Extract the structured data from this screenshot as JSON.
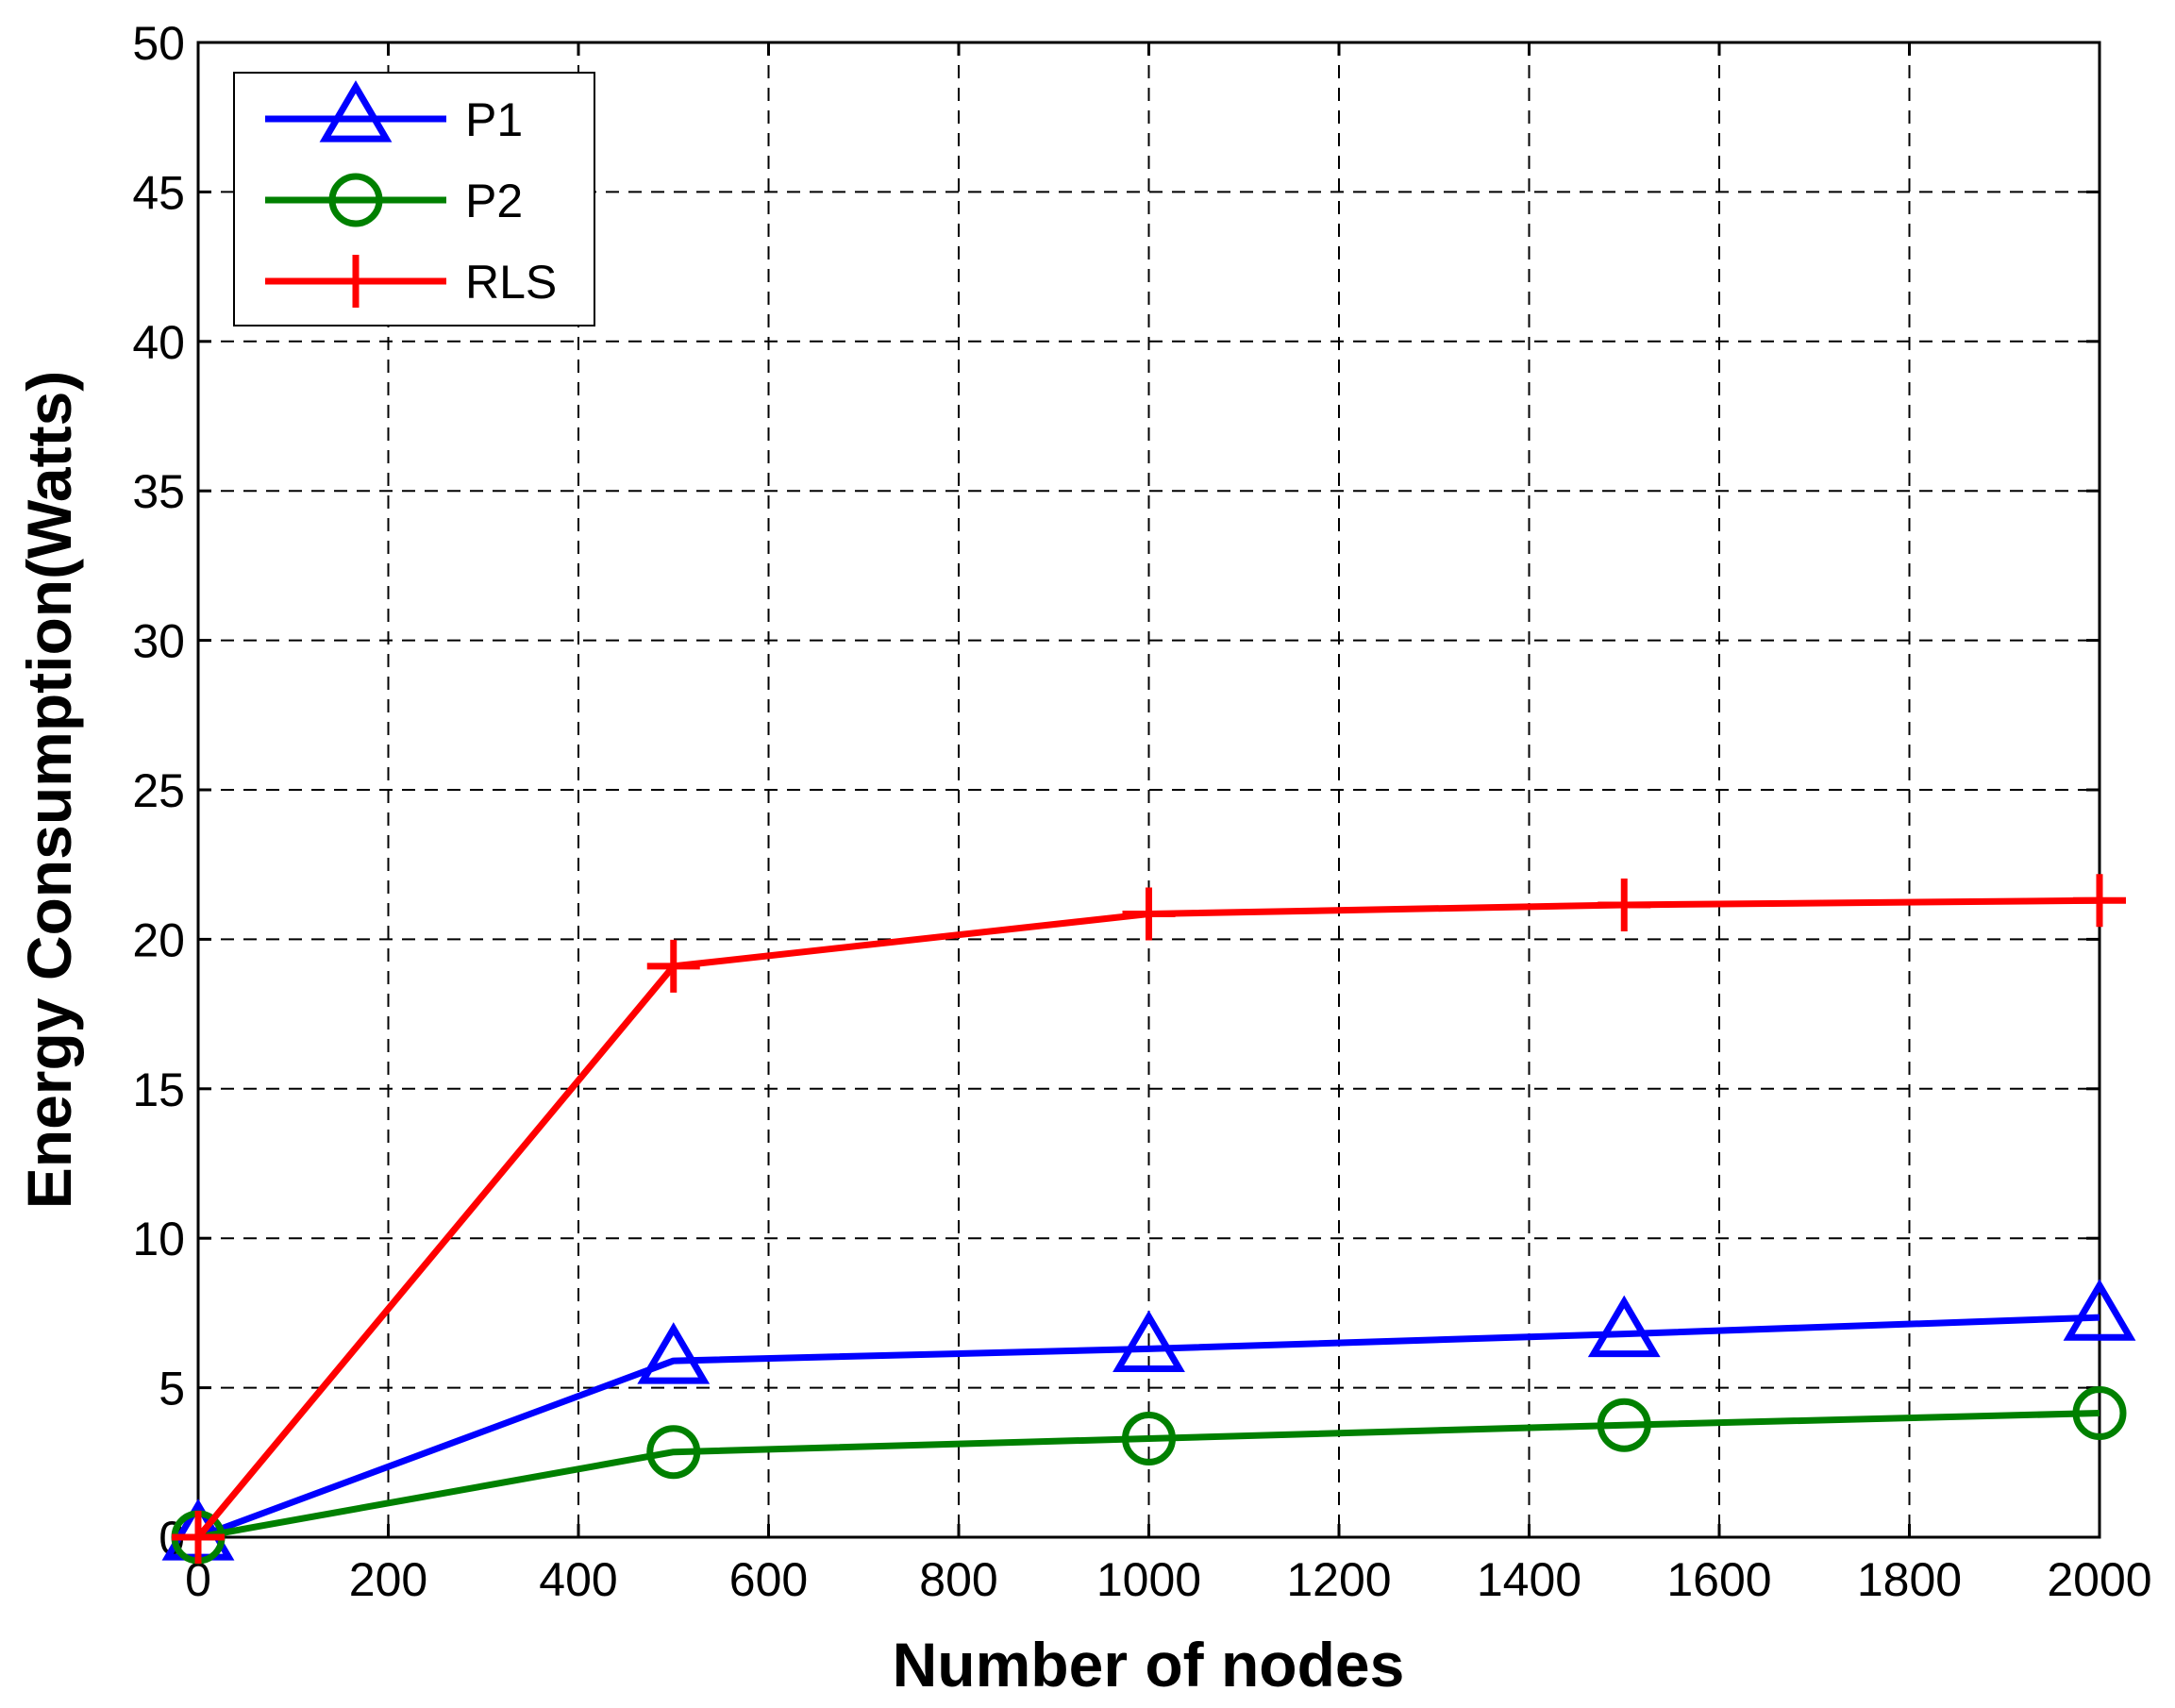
{
  "chart_data": {
    "type": "line",
    "xlabel": "Number of nodes",
    "ylabel": "Energy Consumption(Watts)",
    "xlim": [
      0,
      2000
    ],
    "ylim": [
      0,
      50
    ],
    "xticks": [
      0,
      200,
      400,
      600,
      800,
      1000,
      1200,
      1400,
      1600,
      1800,
      2000
    ],
    "yticks": [
      0,
      5,
      10,
      15,
      20,
      25,
      30,
      35,
      40,
      45,
      50
    ],
    "grid": true,
    "legend_position": "top-left",
    "x": [
      0,
      500,
      1000,
      1500,
      2000
    ],
    "series": [
      {
        "name": "P1",
        "values": [
          0,
          5.9,
          6.3,
          6.8,
          7.35
        ],
        "color": "#0000ff",
        "marker": "triangle"
      },
      {
        "name": "P2",
        "values": [
          0,
          2.85,
          3.3,
          3.75,
          4.15
        ],
        "color": "#008000",
        "marker": "circle"
      },
      {
        "name": "RLS",
        "values": [
          0,
          19.1,
          20.85,
          21.15,
          21.3
        ],
        "color": "#ff0000",
        "marker": "plus"
      }
    ]
  }
}
